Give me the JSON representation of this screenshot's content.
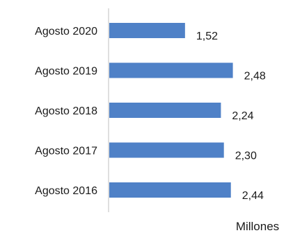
{
  "chart_data": {
    "type": "bar",
    "orientation": "horizontal",
    "categories": [
      "Agosto 2020",
      "Agosto 2019",
      "Agosto 2018",
      "Agosto 2017",
      "Agosto 2016"
    ],
    "values": [
      1.52,
      2.48,
      2.24,
      2.3,
      2.44
    ],
    "value_labels": [
      "1,52",
      "2,48",
      "2,24",
      "2,30",
      "2,44"
    ],
    "unit_label": "Millones",
    "bar_color": "#4f81c7",
    "xlim": [
      0,
      3.1
    ],
    "grid": false,
    "legend": "none"
  }
}
